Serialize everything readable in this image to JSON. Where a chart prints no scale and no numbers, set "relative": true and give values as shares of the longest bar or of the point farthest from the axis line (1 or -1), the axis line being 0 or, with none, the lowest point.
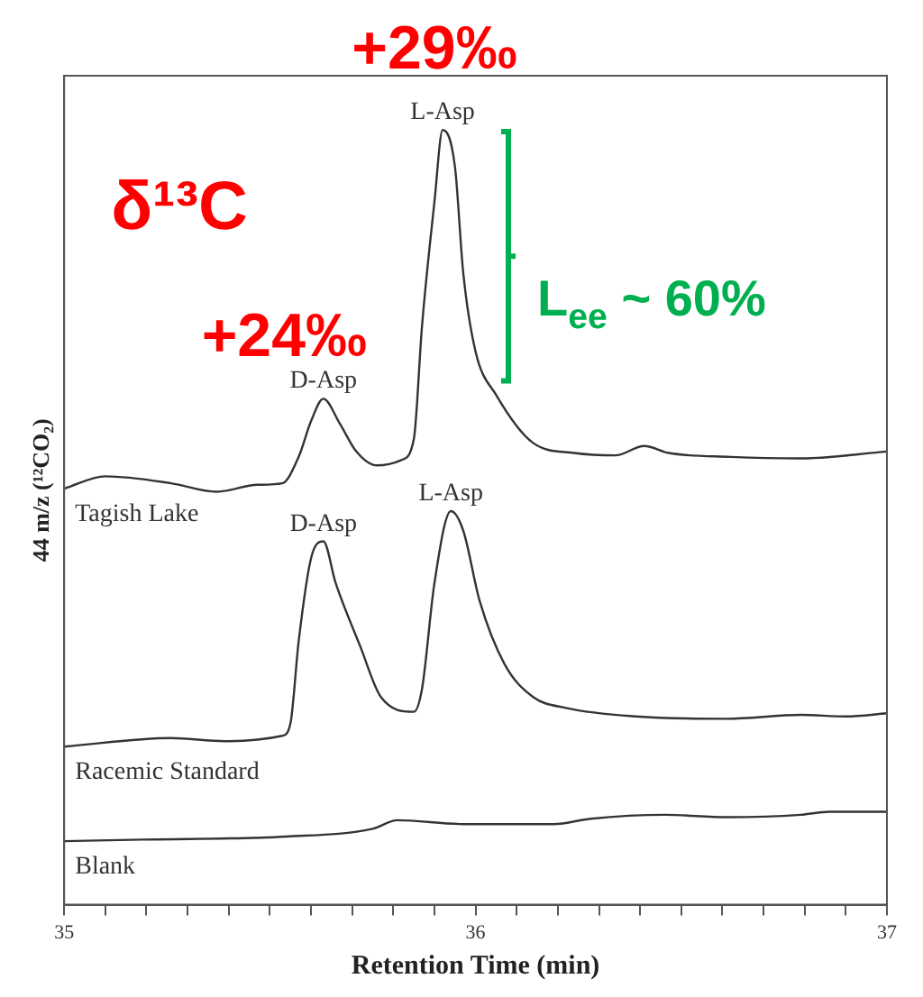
{
  "chart_data": {
    "type": "line",
    "relative": true,
    "xlabel": "Retention Time (min)",
    "ylabel": "44 m/z (¹²CO₂)",
    "xlim": [
      35,
      37
    ],
    "xticks": [
      35,
      {
        "value": 35.1,
        "label": null
      },
      {
        "value": 35.2,
        "label": null
      },
      {
        "value": 35.3,
        "label": null
      },
      {
        "value": 35.4,
        "label": null
      },
      {
        "value": 35.5,
        "label": null
      },
      {
        "value": 35.6,
        "label": null
      },
      {
        "value": 35.7,
        "label": null
      },
      {
        "value": 35.8,
        "label": null
      },
      {
        "value": 35.9,
        "label": null
      },
      36,
      {
        "value": 36.1,
        "label": null
      },
      {
        "value": 36.2,
        "label": null
      },
      {
        "value": 36.3,
        "label": null
      },
      {
        "value": 36.4,
        "label": null
      },
      {
        "value": 36.5,
        "label": null
      },
      {
        "value": 36.6,
        "label": null
      },
      {
        "value": 36.7,
        "label": null
      },
      {
        "value": 36.8,
        "label": null
      },
      {
        "value": 36.9,
        "label": null
      },
      37
    ],
    "grid": false,
    "legend": false,
    "marker": "none",
    "line_style": "solid",
    "series": [
      {
        "name": "Tagish Lake",
        "color": "#333333",
        "x": [
          35,
          35.1,
          35.26,
          35.37,
          35.47,
          35.53,
          35.57,
          35.6,
          35.63,
          35.67,
          35.71,
          35.76,
          35.82,
          35.85,
          35.87,
          35.9,
          35.92,
          35.95,
          35.97,
          36.0,
          36.05,
          36.14,
          36.24,
          36.34,
          36.41,
          36.47,
          36.62,
          36.79,
          37
        ],
        "values": [
          0.537,
          0.553,
          0.544,
          0.533,
          0.542,
          0.544,
          0.578,
          0.624,
          0.653,
          0.621,
          0.585,
          0.567,
          0.574,
          0.601,
          0.748,
          0.907,
          1,
          0.952,
          0.816,
          0.714,
          0.658,
          0.596,
          0.583,
          0.58,
          0.592,
          0.583,
          0.578,
          0.576,
          0.585
        ]
      },
      {
        "name": "Racemic Standard",
        "color": "#333333",
        "x": [
          35,
          35.26,
          35.39,
          35.53,
          35.55,
          35.57,
          35.6,
          35.63,
          35.66,
          35.72,
          35.77,
          35.85,
          35.87,
          35.9,
          35.94,
          35.97,
          36.01,
          36.07,
          36.14,
          36.22,
          36.39,
          36.61,
          36.79,
          36.9,
          37
        ],
        "values": [
          0.204,
          0.215,
          0.211,
          0.218,
          0.234,
          0.34,
          0.447,
          0.469,
          0.415,
          0.333,
          0.268,
          0.249,
          0.279,
          0.415,
          0.508,
          0.483,
          0.392,
          0.311,
          0.268,
          0.254,
          0.243,
          0.24,
          0.245,
          0.243,
          0.247
        ]
      },
      {
        "name": "Blank",
        "color": "#333333",
        "x": [
          35,
          35.19,
          35.54,
          35.75,
          35.81,
          35.97,
          36.19,
          36.28,
          36.46,
          36.61,
          36.79,
          36.86,
          37
        ],
        "values": [
          0.082,
          0.084,
          0.088,
          0.098,
          0.109,
          0.104,
          0.104,
          0.111,
          0.116,
          0.113,
          0.116,
          0.12,
          0.12
        ]
      }
    ],
    "annotations": [
      {
        "text": "D-Asp",
        "x": 35.63,
        "y": 0.653
      },
      {
        "text": "L-Asp",
        "x": 35.92,
        "y": 1
      },
      {
        "text": "D-Asp",
        "x": 35.63,
        "y": 0.469
      },
      {
        "text": "L-Asp",
        "x": 35.94,
        "y": 0.508
      },
      "+29‰",
      "δ¹³C",
      "+24‰",
      "L$_{ee}$ ~ 60%"
    ]
  }
}
